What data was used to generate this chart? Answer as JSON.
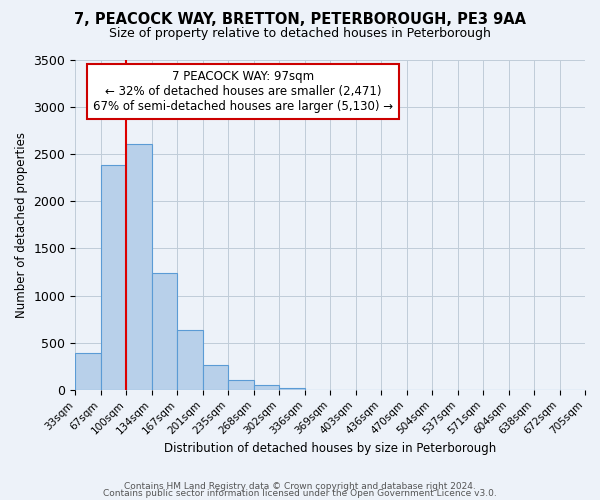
{
  "title_line1": "7, PEACOCK WAY, BRETTON, PETERBOROUGH, PE3 9AA",
  "title_line2": "Size of property relative to detached houses in Peterborough",
  "xlabel": "Distribution of detached houses by size in Peterborough",
  "ylabel": "Number of detached properties",
  "bin_edges": [
    "33sqm",
    "67sqm",
    "100sqm",
    "134sqm",
    "167sqm",
    "201sqm",
    "235sqm",
    "268sqm",
    "302sqm",
    "336sqm",
    "369sqm",
    "403sqm",
    "436sqm",
    "470sqm",
    "504sqm",
    "537sqm",
    "571sqm",
    "604sqm",
    "638sqm",
    "672sqm",
    "705sqm"
  ],
  "bar_values": [
    390,
    2390,
    2610,
    1240,
    630,
    260,
    100,
    50,
    20,
    0,
    0,
    0,
    0,
    0,
    0,
    0,
    0,
    0,
    0,
    0
  ],
  "bar_color": "#b8d0ea",
  "bar_edge_color": "#5b9bd5",
  "ylim": [
    0,
    3500
  ],
  "yticks": [
    0,
    500,
    1000,
    1500,
    2000,
    2500,
    3000,
    3500
  ],
  "property_line_color": "#dd0000",
  "annotation_title": "7 PEACOCK WAY: 97sqm",
  "annotation_line1": "← 32% of detached houses are smaller (2,471)",
  "annotation_line2": "67% of semi-detached houses are larger (5,130) →",
  "annotation_box_color": "#ffffff",
  "annotation_box_edge": "#cc0000",
  "footer_line1": "Contains HM Land Registry data © Crown copyright and database right 2024.",
  "footer_line2": "Contains public sector information licensed under the Open Government Licence v3.0.",
  "bg_color": "#edf2f9"
}
